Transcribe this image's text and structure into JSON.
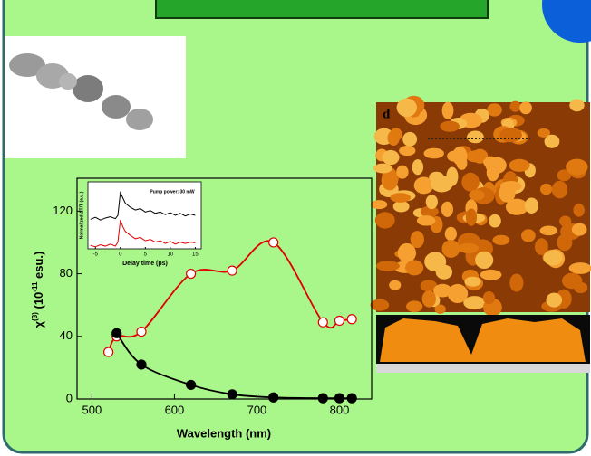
{
  "chart_data": [
    {
      "type": "line",
      "xlabel": "Wavelength (nm)",
      "ylabel": [
        "χ",
        "(3)",
        " (10",
        "-11",
        " esu.)"
      ],
      "xlim": [
        482,
        839
      ],
      "ylim": [
        0,
        141
      ],
      "xticks": [
        500,
        600,
        700,
        800
      ],
      "yticks": [
        0,
        40,
        80,
        120
      ],
      "series": [
        {
          "color": "#e00000",
          "marker": "open",
          "smooth": true,
          "x": [
            520,
            530,
            560,
            620,
            670,
            720,
            780,
            800,
            815
          ],
          "values": [
            30,
            40,
            43,
            80,
            82,
            100,
            49,
            50,
            51
          ]
        },
        {
          "color": "#000000",
          "marker": "filled",
          "smooth": true,
          "x": [
            530,
            560,
            620,
            670,
            720,
            780,
            800,
            815
          ],
          "values": [
            42,
            22,
            9,
            3,
            1,
            0.5,
            0.5,
            0.5
          ]
        }
      ]
    },
    {
      "type": "line",
      "title": "Pump power: 30 mW",
      "xlabel": "Delay time (ps)",
      "ylabel": "Normalized ΔT/T (a.u.)",
      "xlim": [
        -6.5,
        16.2
      ],
      "ylim": [
        0,
        1
      ],
      "xticks": [
        -5,
        0,
        5,
        10,
        15
      ],
      "series": [
        {
          "color": "#000000",
          "x": [
            -6,
            -5,
            -4,
            -3,
            -2,
            -1,
            -0.5,
            0,
            0.5,
            1,
            2,
            3,
            4,
            5,
            6,
            7,
            8,
            9,
            10,
            11,
            12,
            13,
            14,
            15
          ],
          "values": [
            0.44,
            0.47,
            0.43,
            0.46,
            0.48,
            0.45,
            0.5,
            0.84,
            0.76,
            0.68,
            0.62,
            0.58,
            0.6,
            0.55,
            0.57,
            0.53,
            0.55,
            0.51,
            0.54,
            0.5,
            0.53,
            0.49,
            0.52,
            0.5
          ]
        },
        {
          "color": "#e00000",
          "x": [
            -6,
            -5,
            -4,
            -3,
            -2,
            -1,
            -0.5,
            0,
            0.5,
            1,
            2,
            3,
            4,
            5,
            6,
            7,
            8,
            9,
            10,
            11,
            12,
            13,
            14,
            15
          ],
          "values": [
            0.05,
            0.03,
            0.06,
            0.04,
            0.07,
            0.04,
            0.1,
            0.43,
            0.33,
            0.26,
            0.2,
            0.15,
            0.17,
            0.12,
            0.14,
            0.1,
            0.12,
            0.08,
            0.11,
            0.07,
            0.1,
            0.08,
            0.1,
            0.09
          ]
        }
      ]
    }
  ],
  "afm_label": "d"
}
